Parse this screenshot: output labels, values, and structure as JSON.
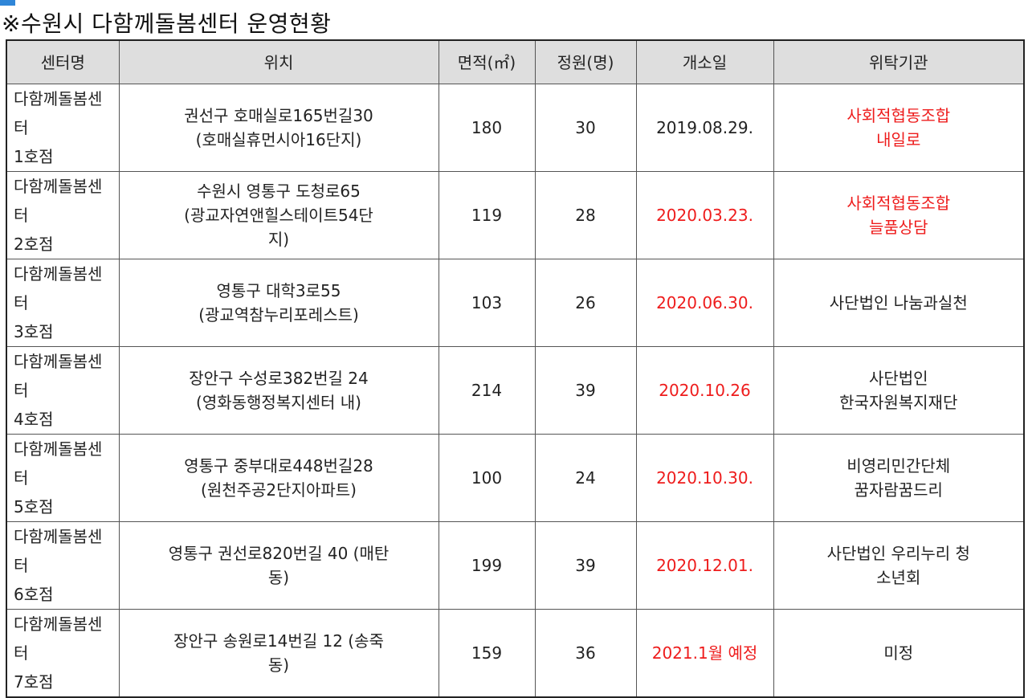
{
  "title": "※수원시 다함께돌봄센터 운영현황",
  "headers": {
    "name": "센터명",
    "location": "위치",
    "area": "면적(㎡)",
    "capacity": "정원(명)",
    "opened": "개소일",
    "operator": "위탁기관"
  },
  "rows": [
    {
      "name_l1": "다함께돌봄센",
      "name_l2": "터",
      "name_l3": "1호점",
      "loc_l1": "권선구 호매실로165번길30",
      "loc_l2": "(호매실휴먼시아16단지)",
      "area": "180",
      "capacity": "30",
      "opened": "2019.08.29.",
      "op_l1": "사회적협동조합",
      "op_l2": "내일로"
    },
    {
      "name_l1": "다함께돌봄센",
      "name_l2": "터",
      "name_l3": "2호점",
      "loc_l1": "수원시 영통구 도청로65",
      "loc_l2": "(광교자연앤힐스테이트54단",
      "loc_l3": "지)",
      "area": "119",
      "capacity": "28",
      "opened": "2020.03.23.",
      "op_l1": "사회적협동조합",
      "op_l2": "늘품상담"
    },
    {
      "name_l1": "다함께돌봄센",
      "name_l2": "터",
      "name_l3": "3호점",
      "loc_l1": "영통구 대학3로55",
      "loc_l2": "(광교역참누리포레스트)",
      "area": "103",
      "capacity": "26",
      "opened": "2020.06.30.",
      "op_l1": "사단법인 나눔과실천"
    },
    {
      "name_l1": "다함께돌봄센",
      "name_l2": "터",
      "name_l3": "4호점",
      "loc_l1": "장안구 수성로382번길 24",
      "loc_l2": "(영화동행정복지센터 내)",
      "area": "214",
      "capacity": "39",
      "opened": "2020.10.26",
      "op_l1": "사단법인",
      "op_l2": "한국자원복지재단"
    },
    {
      "name_l1": "다함께돌봄센",
      "name_l2": "터",
      "name_l3": "5호점",
      "loc_l1": "영통구 중부대로448번길28",
      "loc_l2": "(원천주공2단지아파트)",
      "area": "100",
      "capacity": "24",
      "opened": "2020.10.30.",
      "op_l1": "비영리민간단체",
      "op_l2": "꿈자람꿈드리"
    },
    {
      "name_l1": "다함께돌봄센",
      "name_l2": "터",
      "name_l3": "6호점",
      "loc_l1": "영통구 권선로820번길 40 (매탄",
      "loc_l2": "동)",
      "area": "199",
      "capacity": "39",
      "opened": "2020.12.01.",
      "op_l1": "사단법인 우리누리 청",
      "op_l2": "소년회"
    },
    {
      "name_l1": "다함께돌봄센",
      "name_l2": "터",
      "name_l3": "7호점",
      "loc_l1": "장안구 송원로14번길 12 (송죽",
      "loc_l2": "동)",
      "area": "159",
      "capacity": "36",
      "opened": "2021.1월 예정",
      "op_l1": "미정"
    }
  ],
  "colors": {
    "highlight": "#ee1c1c",
    "header_bg": "#dedede",
    "marker": "#2f86d8"
  }
}
